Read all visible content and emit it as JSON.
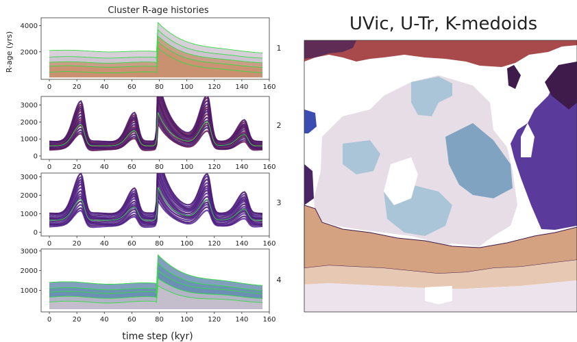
{
  "left_title": "Cluster R-age histories",
  "right_title": "UVic, U-Tr, K-medoids",
  "ylabel": "R-age (yrs)",
  "xlabel": "time step (kyr)",
  "colors": {
    "band_gray": "#c9c0cc",
    "band_tan": "#c8906e",
    "band_purple": "#4a1a6e",
    "band_violet": "#5a2d9a",
    "band_blue": "#6b8fb3",
    "median_line": "#33dd44",
    "brick": "#a84a4c",
    "map_purple": "#5a3a9a",
    "map_lavender": "#e6dde6",
    "map_lightblue": "#aac4d8",
    "map_steel": "#7fa3c0",
    "map_tan": "#d4a181"
  },
  "chart_data": [
    {
      "type": "line",
      "panel_label": "1",
      "x_ticks": [
        0,
        20,
        40,
        60,
        80,
        100,
        120,
        140,
        160
      ],
      "y_ticks": [
        2000,
        4000
      ],
      "xlim": [
        -6,
        160
      ],
      "ylim": [
        -100,
        4600
      ],
      "series_style": "gray/tan band with green percentile lines",
      "percentiles": {
        "p95": {
          "base": 2100,
          "peak": 4300,
          "end": 1900
        },
        "p75": {
          "base": 1600,
          "peak": 3700,
          "end": 1500
        },
        "p50": {
          "base": 1200,
          "peak": 3200,
          "end": 1150
        },
        "p25": {
          "base": 900,
          "peak": 2800,
          "end": 800
        },
        "p05": {
          "base": 450,
          "peak": 2300,
          "end": 400
        }
      }
    },
    {
      "type": "line",
      "panel_label": "2",
      "x_ticks": [
        0,
        20,
        40,
        60,
        80,
        100,
        120,
        140,
        160
      ],
      "y_ticks": [
        0,
        1000,
        2000,
        3000
      ],
      "xlim": [
        -6,
        160
      ],
      "ylim": [
        -200,
        3500
      ],
      "series_style": "dark purple lines with green median",
      "peaks": [
        {
          "x": 23,
          "value": 2100
        },
        {
          "x": 62,
          "value": 1500
        },
        {
          "x": 79,
          "value": 3300
        },
        {
          "x": 115,
          "value": 2300
        },
        {
          "x": 142,
          "value": 1100
        }
      ]
    },
    {
      "type": "line",
      "panel_label": "3",
      "x_ticks": [
        0,
        20,
        40,
        60,
        80,
        100,
        120,
        140,
        160
      ],
      "y_ticks": [
        0,
        1000,
        2000,
        3000
      ],
      "xlim": [
        -6,
        160
      ],
      "ylim": [
        -200,
        3200
      ],
      "series_style": "violet/dark purple lines with green median",
      "peaks": [
        {
          "x": 23,
          "value": 1900
        },
        {
          "x": 62,
          "value": 1200
        },
        {
          "x": 79,
          "value": 3000
        },
        {
          "x": 115,
          "value": 1800
        },
        {
          "x": 142,
          "value": 1000
        }
      ]
    },
    {
      "type": "line",
      "panel_label": "4",
      "x_ticks": [
        0,
        20,
        40,
        60,
        80,
        100,
        120,
        140,
        160
      ],
      "y_ticks": [
        1000,
        2000,
        3000
      ],
      "xlim": [
        -6,
        160
      ],
      "ylim": [
        -100,
        3100
      ],
      "series_style": "steel blue band with gray lower band and green percentile lines",
      "percentiles": {
        "p95": {
          "base": 1400,
          "peak": 2850,
          "end": 1250
        },
        "p75": {
          "base": 1100,
          "peak": 2400,
          "end": 1000
        },
        "p50": {
          "base": 900,
          "peak": 2000,
          "end": 850
        },
        "p25": {
          "base": 650,
          "peak": 1600,
          "end": 600
        },
        "p05": {
          "base": 400,
          "peak": 1200,
          "end": 400
        }
      }
    }
  ]
}
